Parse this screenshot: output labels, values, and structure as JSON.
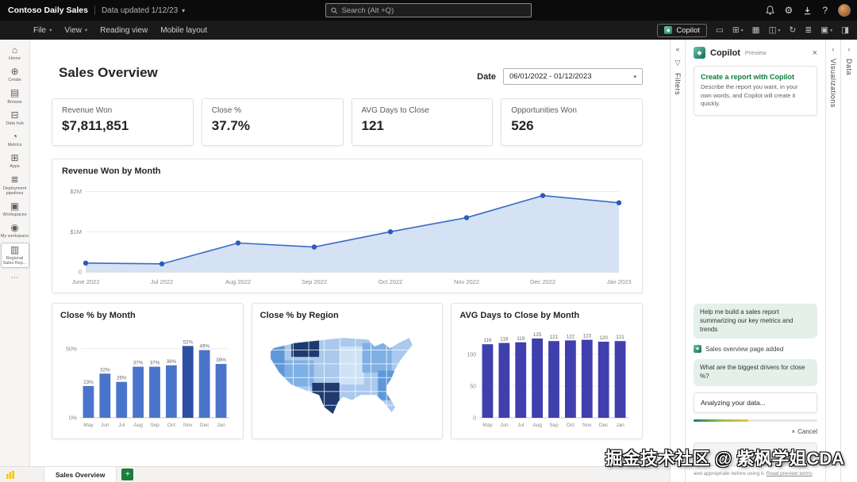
{
  "topbar": {
    "app_name": "Contoso Daily Sales",
    "data_updated": "Data updated 1/12/23",
    "search_placeholder": "Search (Alt +Q)",
    "help_label": "?"
  },
  "icons": {
    "chevron_down": "▾",
    "chevron_left": "‹",
    "collapse": "«",
    "funnel": "▽",
    "diamond": "◆",
    "close": "×",
    "gear": "⚙",
    "more": "⋯",
    "plus": "+"
  },
  "menubar": {
    "items": [
      {
        "label": "File",
        "caret": true
      },
      {
        "label": "View",
        "caret": true
      },
      {
        "label": "Reading view",
        "caret": false
      },
      {
        "label": "Mobile layout",
        "caret": false
      }
    ],
    "copilot_label": "Copilot",
    "right_icons": [
      {
        "name": "comment",
        "glyph": "▭"
      },
      {
        "name": "view",
        "glyph": "⊞"
      },
      {
        "name": "table",
        "glyph": "▦"
      },
      {
        "name": "card",
        "glyph": "◫"
      },
      {
        "name": "refresh",
        "glyph": "↻"
      },
      {
        "name": "layout",
        "glyph": "≣"
      },
      {
        "name": "frame",
        "glyph": "▣"
      },
      {
        "name": "split",
        "glyph": "◨"
      }
    ]
  },
  "sidebar": {
    "items": [
      {
        "label": "Home",
        "icon": "⌂"
      },
      {
        "label": "Create",
        "icon": "⊕"
      },
      {
        "label": "Browse",
        "icon": "▤"
      },
      {
        "label": "Data hub",
        "icon": "⊟"
      },
      {
        "label": "Metrics",
        "icon": "◔"
      },
      {
        "label": "Apps",
        "icon": "⊞"
      },
      {
        "label": "Deployment pipelines",
        "icon": "≣"
      },
      {
        "label": "Workspaces",
        "icon": "▣"
      },
      {
        "label": "My workspace",
        "icon": "◉"
      },
      {
        "label": "Regional Sales Rep...",
        "icon": "▥"
      }
    ],
    "more_icon": "⋯"
  },
  "page": {
    "title": "Sales Overview",
    "date_label": "Date",
    "date_value": "06/01/2022 - 01/12/2023"
  },
  "kpis": [
    {
      "label": "Revenue Won",
      "value": "$7,811,851"
    },
    {
      "label": "Close %",
      "value": "37.7%"
    },
    {
      "label": "AVG Days to Close",
      "value": "121"
    },
    {
      "label": "Opportunities Won",
      "value": "526"
    }
  ],
  "chart_data": [
    {
      "type": "area",
      "title": "Revenue Won by Month",
      "x": [
        "June 2022",
        "Jul 2022",
        "Aug 2022",
        "Sep 2022",
        "Oct 2022",
        "Nov 2022",
        "Dec 2022",
        "Jan 2023"
      ],
      "values": [
        0.22,
        0.2,
        0.72,
        0.62,
        1.0,
        1.35,
        1.9,
        1.72
      ],
      "unit": "millions USD",
      "ylim": [
        0,
        2.15
      ],
      "ytick_vals": [
        0,
        1,
        2
      ],
      "ytick_labels": [
        "0",
        "$1M",
        "$2M"
      ],
      "line_color": "#3a6bc4",
      "fill_color": "#cfdff3",
      "point_color": "#2c5cb8"
    },
    {
      "type": "bar",
      "title": "Close % by Month",
      "categories": [
        "May",
        "Jun",
        "Jul",
        "Aug",
        "Sep",
        "Oct",
        "Nov",
        "Dec",
        "Jan"
      ],
      "values": [
        23,
        32,
        26,
        37,
        37,
        38,
        52,
        49,
        39
      ],
      "labels": [
        "23%",
        "32%",
        "26%",
        "37%",
        "37%",
        "38%",
        "52%",
        "49%",
        "39%"
      ],
      "ylim": [
        0,
        62
      ],
      "ytick_vals": [
        0,
        50
      ],
      "ytick_labels": [
        "0%",
        "50%"
      ],
      "bar_color": "#4a74cc",
      "highlight_index": 6,
      "highlight_color": "#2d4fa3"
    },
    {
      "type": "choropleth_map",
      "title": "Close % by Region",
      "region": "United States",
      "palette": [
        "#cfe2f6",
        "#aac9ec",
        "#7fb0e4",
        "#5f97d8",
        "#1e3a6e"
      ]
    },
    {
      "type": "bar",
      "title": "AVG Days to Close by Month",
      "categories": [
        "May",
        "Jun",
        "Jul",
        "Aug",
        "Sep",
        "Oct",
        "Nov",
        "Dec",
        "Jan"
      ],
      "values": [
        116,
        118,
        119,
        125,
        121,
        122,
        123,
        120,
        121
      ],
      "labels": [
        "116",
        "118",
        "119",
        "125",
        "121",
        "122",
        "123",
        "120",
        "121"
      ],
      "ylim": [
        0,
        135
      ],
      "ytick_vals": [
        0,
        50,
        100
      ],
      "ytick_labels": [
        "0",
        "50",
        "100"
      ],
      "bar_color": "#3f3fae"
    }
  ],
  "copilot": {
    "title": "Copilot",
    "preview_badge": "Preview",
    "card_title": "Create a report with Copilot",
    "card_body": "Describe the report you want, in your own words, and Copilot will create it quickly.",
    "message_1": "Help me build a sales report summarizing our key metrics and trends",
    "status_added": "Sales overview page added",
    "message_2": "What are the biggest drivers for close %?",
    "status_analyzing": "Analyzing your data...",
    "cancel_label": "Cancel",
    "footer_text": "and appropriate before using it.",
    "footer_link": "Read preview terms"
  },
  "right_rail": {
    "filters": "Filters",
    "visualizations": "Visualizations",
    "data": "Data"
  },
  "bottom": {
    "tab": "Sales Overview"
  },
  "watermark": "掘金技术社区 @ 紫枫学姐CDA"
}
